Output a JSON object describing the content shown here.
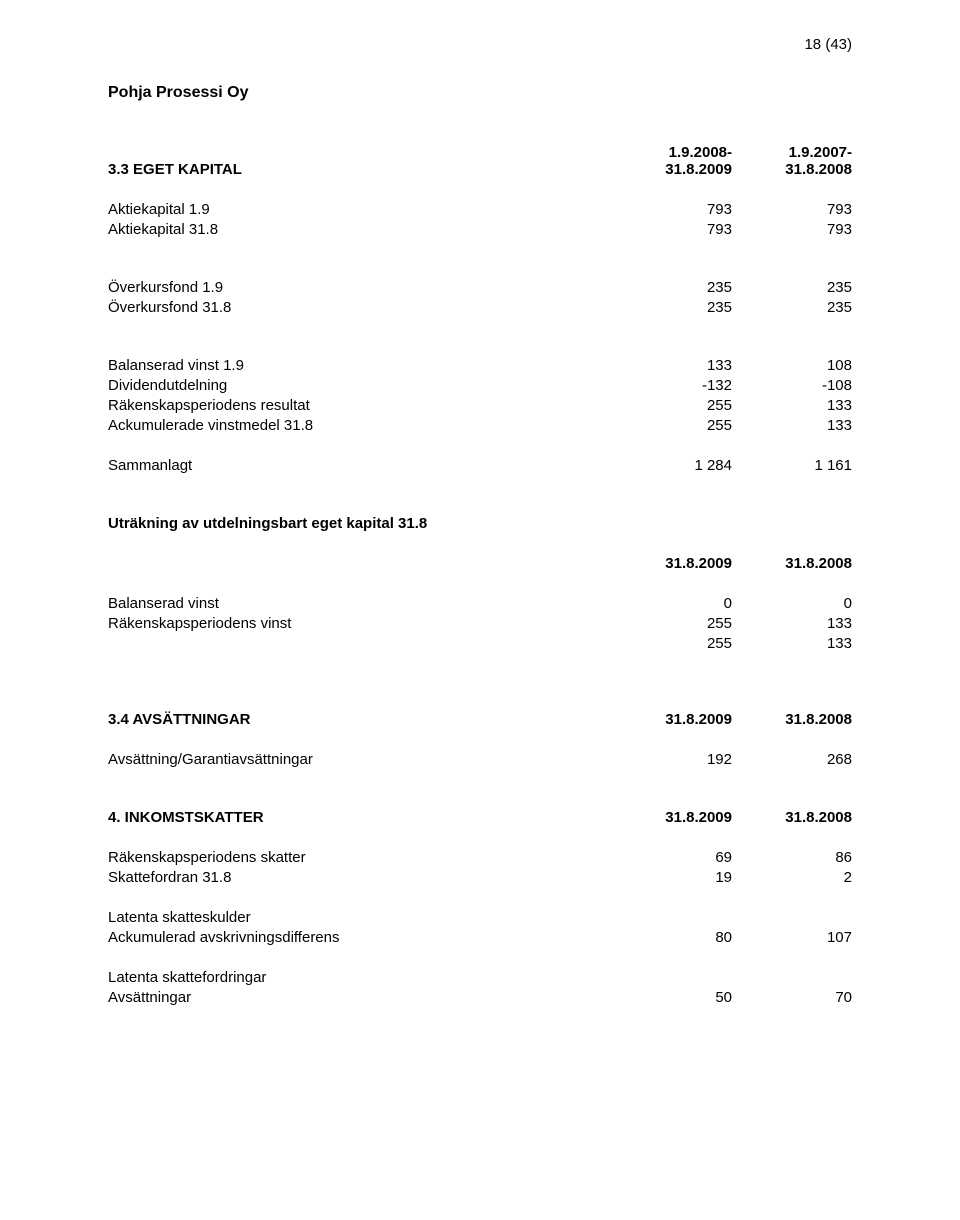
{
  "page_number": "18 (43)",
  "company": "Pohja Prosessi Oy",
  "col_headers": {
    "a_line1": "1.9.2008-",
    "a_line2": "31.8.2009",
    "b_line1": "1.9.2007-",
    "b_line2": "31.8.2008"
  },
  "sec1": {
    "title": "3.3 EGET KAPITAL",
    "rows": {
      "aktiekapital_19": {
        "label": "Aktiekapital 1.9",
        "a": "793",
        "b": "793"
      },
      "aktiekapital_318": {
        "label": "Aktiekapital 31.8",
        "a": "793",
        "b": "793"
      },
      "overkursfond_19": {
        "label": "Överkursfond 1.9",
        "a": "235",
        "b": "235"
      },
      "overkursfond_318": {
        "label": "Överkursfond 31.8",
        "a": "235",
        "b": "235"
      },
      "balanserad_19": {
        "label": "Balanserad vinst 1.9",
        "a": "133",
        "b": "108"
      },
      "dividend": {
        "label": "Dividendutdelning",
        "a": "-132",
        "b": "-108"
      },
      "resultat": {
        "label": "Räkenskapsperiodens resultat",
        "a": "255",
        "b": "133"
      },
      "ack_318": {
        "label": "Ackumulerade vinstmedel 31.8",
        "a": "255",
        "b": "133"
      },
      "sammanlagt": {
        "label": "Sammanlagt",
        "a": "1 284",
        "b": "1 161"
      }
    }
  },
  "sec2": {
    "title": "Uträkning av utdelningsbart eget kapital 31.8",
    "col_a": "31.8.2009",
    "col_b": "31.8.2008",
    "rows": {
      "balanserad": {
        "label": "Balanserad vinst",
        "a": "0",
        "b": "0"
      },
      "vinst": {
        "label": "Räkenskapsperiodens vinst",
        "a": "255",
        "b": "133"
      },
      "sum": {
        "a": "255",
        "b": "133"
      }
    }
  },
  "sec3": {
    "title": "3.4 AVSÄTTNINGAR",
    "col_a": "31.8.2009",
    "col_b": "31.8.2008",
    "rows": {
      "garanti": {
        "label": "Avsättning/Garantiavsättningar",
        "a": "192",
        "b": "268"
      }
    }
  },
  "sec4": {
    "title": "4. INKOMSTSKATTER",
    "col_a": "31.8.2009",
    "col_b": "31.8.2008",
    "rows": {
      "skatter": {
        "label": "Räkenskapsperiodens skatter",
        "a": "69",
        "b": "86"
      },
      "fordran": {
        "label": "Skattefordran 31.8",
        "a": "19",
        "b": "2"
      },
      "lat_skuld_h": {
        "label": "Latenta skatteskulder"
      },
      "ack_avs": {
        "label": "Ackumulerad avskrivningsdifferens",
        "a": "80",
        "b": "107"
      },
      "lat_ford_h": {
        "label": "Latenta skattefordringar"
      },
      "avsatt": {
        "label": "Avsättningar",
        "a": "50",
        "b": "70"
      }
    }
  }
}
